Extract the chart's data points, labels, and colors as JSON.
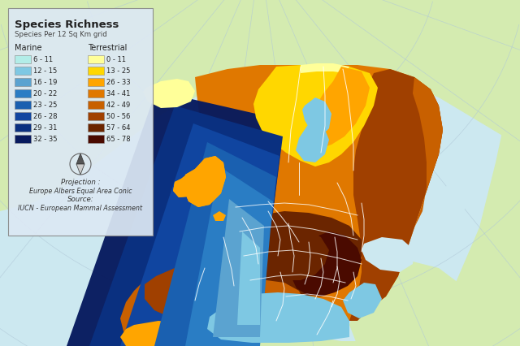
{
  "title": "Species Richness",
  "subtitle": "Species Per 12 Sq Km grid",
  "marine_label": "Marine",
  "terrestrial_label": "Terrestrial",
  "marine_legend": [
    {
      "range": "6 - 11",
      "color": "#b2ede8"
    },
    {
      "range": "12 - 15",
      "color": "#7ec8e3"
    },
    {
      "range": "16 - 19",
      "color": "#5ba3d0"
    },
    {
      "range": "20 - 22",
      "color": "#2a7dc4"
    },
    {
      "range": "23 - 25",
      "color": "#1a60b0"
    },
    {
      "range": "26 - 28",
      "color": "#1045a0"
    },
    {
      "range": "29 - 31",
      "color": "#0a3080"
    },
    {
      "range": "32 - 35",
      "color": "#071a5e"
    }
  ],
  "terrestrial_legend": [
    {
      "range": "0 - 11",
      "color": "#ffff99"
    },
    {
      "range": "13 - 25",
      "color": "#ffd700"
    },
    {
      "range": "26 - 33",
      "color": "#ffa500"
    },
    {
      "range": "34 - 41",
      "color": "#e07800"
    },
    {
      "range": "42 - 49",
      "color": "#c86000"
    },
    {
      "range": "50 - 56",
      "color": "#a04000"
    },
    {
      "range": "57 - 64",
      "color": "#6b2500"
    },
    {
      "range": "65 - 78",
      "color": "#4a0a00"
    }
  ],
  "projection_text": "Projection :",
  "projection_name": "Europe Albers Equal Area Conic",
  "source_label": "Source:",
  "source_text": "IUCN - European Mammal Assessment",
  "bg_color": "#cce8f0",
  "land_bg_color": "#d4ebb0",
  "legend_bg": "#dce8f4",
  "legend_border": "#aaaaaa",
  "fig_width": 6.4,
  "fig_height": 4.26,
  "dpi": 100
}
